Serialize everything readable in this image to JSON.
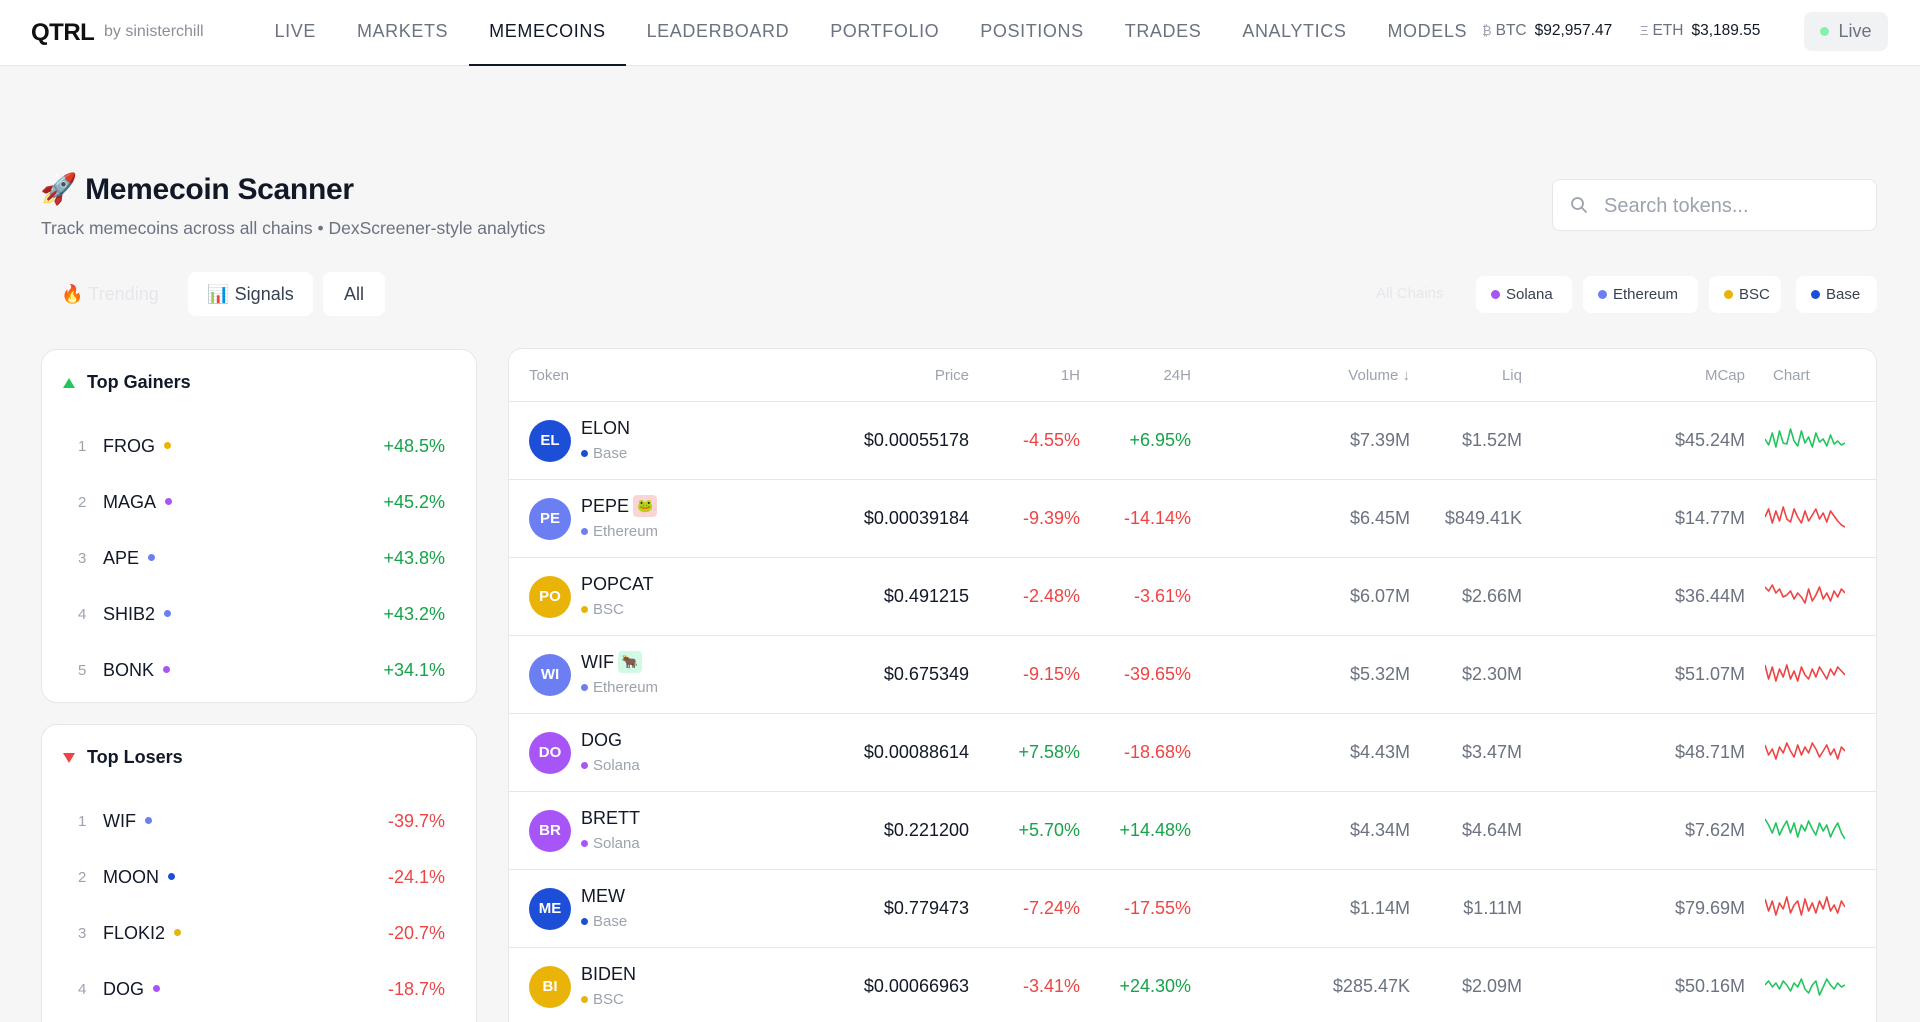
{
  "brand": {
    "logo": "QTRL",
    "byline": "by sinisterchill"
  },
  "nav": [
    "LIVE",
    "MARKETS",
    "MEMECOINS",
    "LEADERBOARD",
    "PORTFOLIO",
    "POSITIONS",
    "TRADES",
    "ANALYTICS",
    "MODELS"
  ],
  "nav_active": "MEMECOINS",
  "tickers": {
    "btc": {
      "symbol": "₿",
      "name": "BTC",
      "price": "$92,957.47"
    },
    "eth": {
      "symbol": "Ξ",
      "name": "ETH",
      "price": "$3,189.55"
    }
  },
  "live_label": "Live",
  "header": {
    "title_icon": "🚀",
    "title": "Memecoin Scanner",
    "subtitle": "Track memecoins across all chains • DexScreener-style analytics"
  },
  "search": {
    "placeholder": "Search tokens..."
  },
  "tabs": {
    "trending": "🔥 Trending",
    "signals": "📊 Signals",
    "all": "All"
  },
  "chains": {
    "label": "All Chains",
    "items": [
      {
        "name": "Solana",
        "color": "#a855f7"
      },
      {
        "name": "Ethereum",
        "color": "#6b7ff2"
      },
      {
        "name": "BSC",
        "color": "#eab308"
      },
      {
        "name": "Base",
        "color": "#1d4ed8"
      }
    ]
  },
  "gainers": {
    "title": "Top Gainers",
    "items": [
      {
        "rank": "1",
        "symbol": "FROG",
        "dot": "#eab308",
        "change": "+48.5%"
      },
      {
        "rank": "2",
        "symbol": "MAGA",
        "dot": "#a855f7",
        "change": "+45.2%"
      },
      {
        "rank": "3",
        "symbol": "APE",
        "dot": "#6b7ff2",
        "change": "+43.8%"
      },
      {
        "rank": "4",
        "symbol": "SHIB2",
        "dot": "#6b7ff2",
        "change": "+43.2%"
      },
      {
        "rank": "5",
        "symbol": "BONK",
        "dot": "#a855f7",
        "change": "+34.1%"
      }
    ]
  },
  "losers": {
    "title": "Top Losers",
    "items": [
      {
        "rank": "1",
        "symbol": "WIF",
        "dot": "#6b7ff2",
        "change": "-39.7%"
      },
      {
        "rank": "2",
        "symbol": "MOON",
        "dot": "#1d4ed8",
        "change": "-24.1%"
      },
      {
        "rank": "3",
        "symbol": "FLOKI2",
        "dot": "#eab308",
        "change": "-20.7%"
      },
      {
        "rank": "4",
        "symbol": "DOG",
        "dot": "#a855f7",
        "change": "-18.7%"
      }
    ]
  },
  "table": {
    "columns": {
      "token": "Token",
      "price": "Price",
      "h1": "1H",
      "h24": "24H",
      "volume": "Volume ↓",
      "liq": "Liq",
      "mcap": "MCap",
      "chart": "Chart"
    },
    "rows": [
      {
        "abbr": "EL",
        "color": "#1d4ed8",
        "name": "ELON",
        "badge": "",
        "chain": "Base",
        "chain_color": "#1d4ed8",
        "price": "$0.00055178",
        "h1": "-4.55%",
        "h24": "+6.95%",
        "volume": "$7.39M",
        "liq": "$1.52M",
        "mcap": "$45.24M",
        "trend": "up",
        "spark": [
          14,
          8,
          20,
          6,
          22,
          10,
          9,
          24,
          12,
          7,
          22,
          10,
          16,
          6,
          20,
          11,
          14,
          7,
          18,
          9,
          12,
          8,
          10
        ]
      },
      {
        "abbr": "PE",
        "color": "#6b7ff2",
        "name": "PEPE",
        "badge": "🐸",
        "badge_bg": "#fbd5d5",
        "chain": "Ethereum",
        "chain_color": "#6b7ff2",
        "price": "$0.00039184",
        "h1": "-9.39%",
        "h24": "-14.14%",
        "volume": "$6.45M",
        "liq": "$849.41K",
        "mcap": "$14.77M",
        "trend": "down",
        "spark": [
          14,
          22,
          8,
          20,
          10,
          24,
          12,
          9,
          22,
          14,
          8,
          20,
          10,
          16,
          22,
          12,
          18,
          9,
          20,
          15,
          10,
          6,
          4
        ]
      },
      {
        "abbr": "PO",
        "color": "#eab308",
        "name": "POPCAT",
        "badge": "",
        "chain": "BSC",
        "chain_color": "#eab308",
        "price": "$0.491215",
        "h1": "-2.48%",
        "h24": "-3.61%",
        "volume": "$6.07M",
        "liq": "$2.66M",
        "mcap": "$36.44M",
        "trend": "down",
        "spark": [
          22,
          18,
          24,
          16,
          20,
          12,
          14,
          18,
          10,
          16,
          12,
          6,
          20,
          8,
          14,
          22,
          10,
          16,
          8,
          18,
          12,
          20,
          16
        ]
      },
      {
        "abbr": "WI",
        "color": "#6b7ff2",
        "name": "WIF",
        "badge": "🐂",
        "badge_bg": "#d1fae5",
        "chain": "Ethereum",
        "chain_color": "#6b7ff2",
        "price": "$0.675349",
        "h1": "-9.15%",
        "h24": "-39.65%",
        "volume": "$5.32M",
        "liq": "$2.30M",
        "mcap": "$51.07M",
        "trend": "down",
        "spark": [
          22,
          8,
          20,
          6,
          18,
          10,
          22,
          8,
          16,
          6,
          20,
          12,
          8,
          18,
          10,
          20,
          14,
          8,
          18,
          12,
          20,
          16,
          12
        ]
      },
      {
        "abbr": "DO",
        "color": "#a855f7",
        "name": "DOG",
        "badge": "",
        "chain": "Solana",
        "chain_color": "#a855f7",
        "price": "$0.00088614",
        "h1": "+7.58%",
        "h24": "-18.68%",
        "volume": "$4.43M",
        "liq": "$3.47M",
        "mcap": "$48.71M",
        "trend": "down",
        "spark": [
          20,
          10,
          16,
          6,
          18,
          12,
          22,
          14,
          8,
          20,
          10,
          18,
          12,
          22,
          16,
          8,
          14,
          20,
          10,
          16,
          6,
          18,
          14
        ]
      },
      {
        "abbr": "BR",
        "color": "#a855f7",
        "name": "BRETT",
        "badge": "",
        "chain": "Solana",
        "chain_color": "#a855f7",
        "price": "$0.221200",
        "h1": "+5.70%",
        "h24": "+14.48%",
        "volume": "$4.34M",
        "liq": "$4.64M",
        "mcap": "$7.62M",
        "trend": "up",
        "spark": [
          24,
          18,
          10,
          20,
          8,
          16,
          22,
          10,
          20,
          6,
          18,
          12,
          22,
          14,
          8,
          20,
          12,
          18,
          6,
          14,
          20,
          10,
          4
        ]
      },
      {
        "abbr": "ME",
        "color": "#1d4ed8",
        "name": "MEW",
        "badge": "",
        "chain": "Base",
        "chain_color": "#1d4ed8",
        "price": "$0.779473",
        "h1": "-7.24%",
        "h24": "-17.55%",
        "volume": "$1.14M",
        "liq": "$1.11M",
        "mcap": "$79.69M",
        "trend": "down",
        "spark": [
          22,
          10,
          20,
          6,
          18,
          12,
          24,
          8,
          16,
          20,
          6,
          22,
          10,
          18,
          8,
          20,
          12,
          24,
          10,
          16,
          8,
          20,
          14
        ]
      },
      {
        "abbr": "BI",
        "color": "#eab308",
        "name": "BIDEN",
        "badge": "",
        "chain": "BSC",
        "chain_color": "#eab308",
        "price": "$0.00066963",
        "h1": "-3.41%",
        "h24": "+24.30%",
        "volume": "$285.47K",
        "liq": "$2.09M",
        "mcap": "$50.16M",
        "trend": "up",
        "spark": [
          14,
          18,
          12,
          16,
          10,
          18,
          14,
          8,
          16,
          12,
          20,
          10,
          6,
          14,
          18,
          4,
          12,
          20,
          14,
          10,
          16,
          12,
          14
        ]
      }
    ]
  },
  "colors": {
    "positive": "#16a34a",
    "negative": "#ef4444",
    "spark_up": "#22c55e",
    "spark_down": "#ef4444"
  }
}
